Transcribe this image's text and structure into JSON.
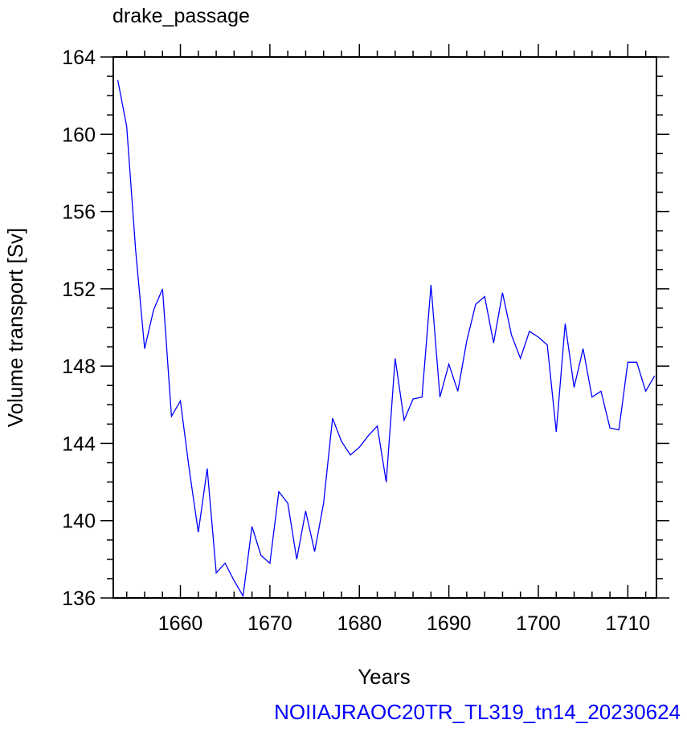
{
  "chart_data": {
    "type": "line",
    "title": "drake_passage",
    "xlabel": "Years",
    "ylabel": "Volume transport [Sv]",
    "xlim": [
      1652.5,
      1713.2
    ],
    "ylim": [
      136,
      164
    ],
    "x_ticks": [
      1660,
      1670,
      1680,
      1690,
      1700,
      1710
    ],
    "y_ticks": [
      136,
      140,
      144,
      148,
      152,
      156,
      160,
      164
    ],
    "x_tick_labels": [
      "1660",
      "1670",
      "1680",
      "1690",
      "1700",
      "1710"
    ],
    "y_tick_labels": [
      "136",
      "140",
      "144",
      "148",
      "152",
      "156",
      "160",
      "164"
    ],
    "grid": false,
    "line_color": "#0000ff",
    "series": [
      {
        "x": [
          1653,
          1654,
          1655,
          1656,
          1657,
          1658,
          1659,
          1660,
          1661,
          1662,
          1663,
          1664,
          1665,
          1666,
          1667,
          1668,
          1669,
          1670,
          1671,
          1672,
          1673,
          1674,
          1675,
          1676,
          1677,
          1678,
          1679,
          1680,
          1681,
          1682,
          1683,
          1684,
          1685,
          1686,
          1687,
          1688,
          1689,
          1690,
          1691,
          1692,
          1693,
          1694,
          1695,
          1696,
          1697,
          1698,
          1699,
          1700,
          1701,
          1702,
          1703,
          1704,
          1705,
          1706,
          1707,
          1708,
          1709,
          1710,
          1711,
          1712,
          1713
        ],
        "values": [
          162.8,
          160.4,
          154.0,
          148.9,
          150.9,
          152.0,
          145.4,
          146.2,
          142.6,
          139.4,
          142.7,
          137.3,
          137.8,
          136.9,
          136.1,
          139.7,
          138.2,
          137.8,
          141.5,
          140.9,
          138.0,
          140.5,
          138.4,
          140.9,
          145.3,
          144.1,
          143.4,
          143.8,
          144.4,
          144.9,
          142.0,
          148.4,
          145.2,
          146.3,
          146.4,
          152.2,
          146.4,
          148.1,
          146.7,
          149.3,
          151.2,
          151.6,
          149.2,
          151.8,
          149.6,
          148.4,
          149.8,
          149.5,
          149.1,
          144.6,
          150.2,
          146.9,
          148.9,
          146.4,
          146.7,
          144.8,
          144.7,
          148.2,
          148.2,
          146.7,
          147.5
        ]
      }
    ]
  },
  "footer": {
    "label": "NOIIAJRAOC20TR_TL319_tn14_20230624",
    "color": "#0000ff"
  }
}
